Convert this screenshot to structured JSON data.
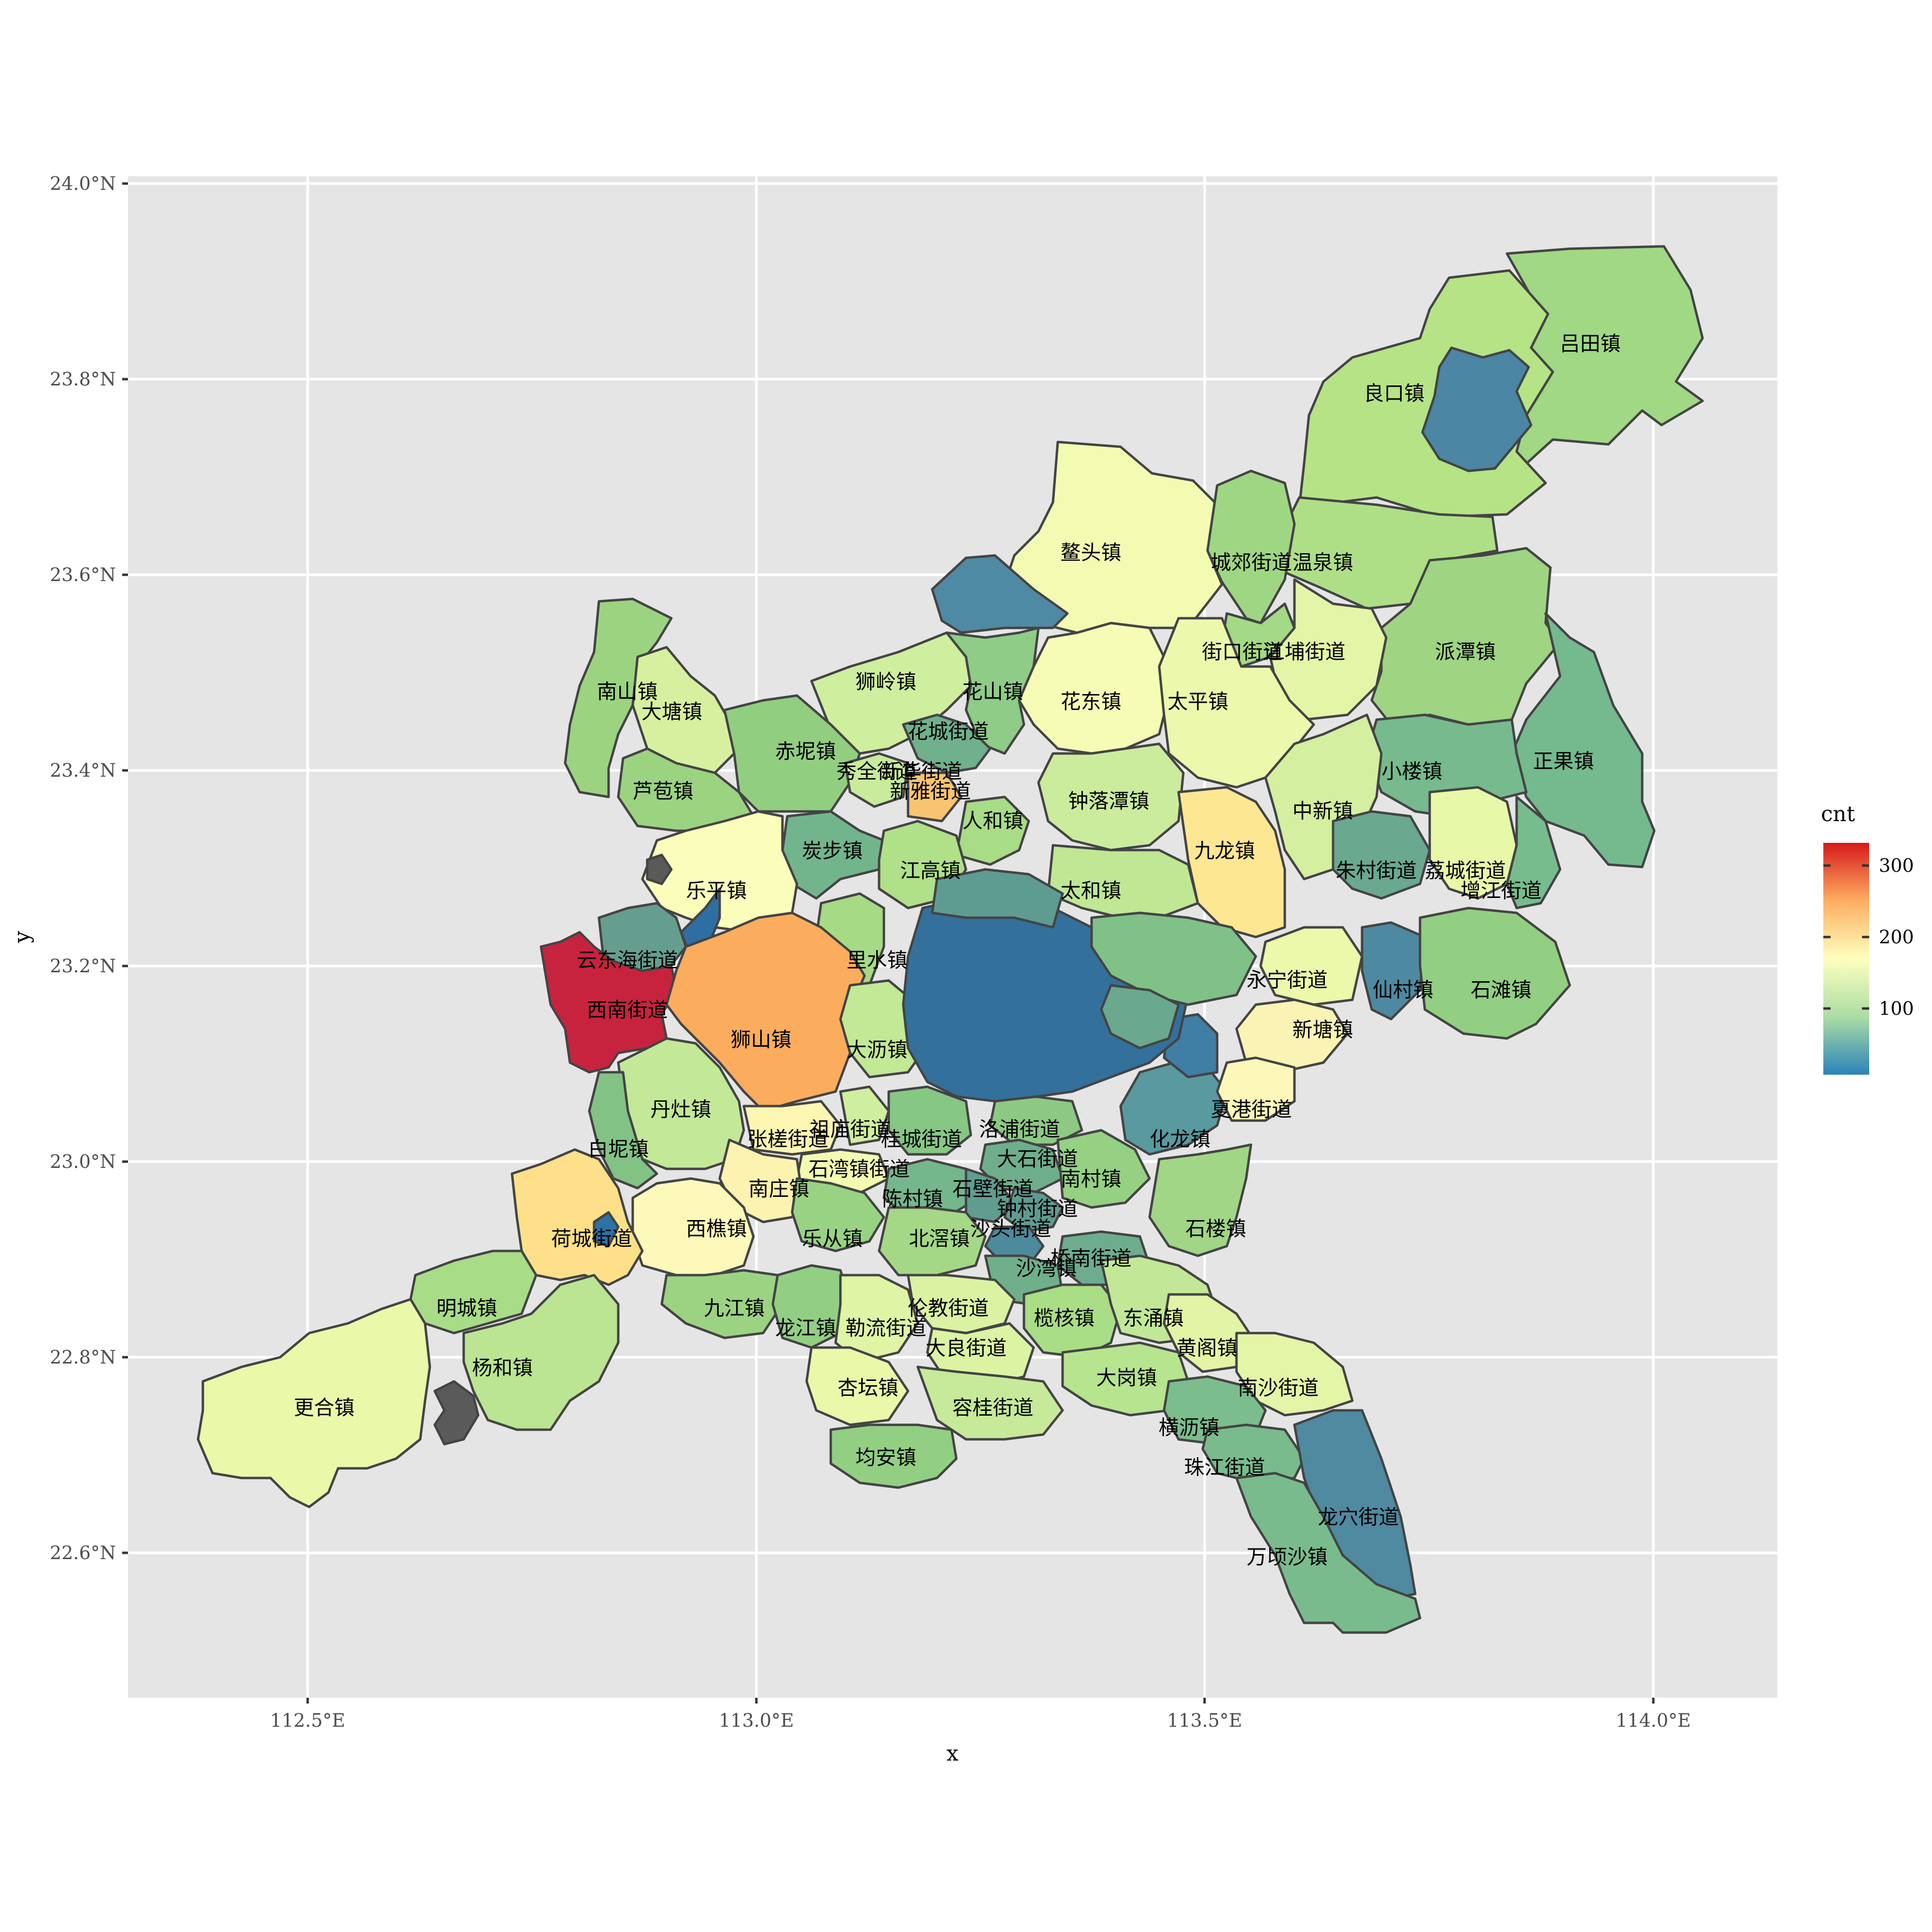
{
  "map": {
    "x_axis_title": "x",
    "y_axis_title": "y",
    "x_ticks": [
      "112.5°E",
      "113.0°E",
      "113.5°E",
      "114.0°E"
    ],
    "y_ticks": [
      "24.0°N",
      "23.8°N",
      "23.6°N",
      "23.4°N",
      "23.2°N",
      "23.0°N",
      "22.8°N",
      "22.6°N"
    ],
    "legend": {
      "title": "cnt",
      "ticks": [
        "300",
        "200",
        "100"
      ],
      "colors": [
        "#2b83ba",
        "#abdda4",
        "#ffffbf",
        "#fdae61",
        "#d7191c"
      ]
    },
    "missing_color": "#5a5a5a"
  },
  "chart_data": {
    "type": "choropleth",
    "xlim": [
      112.3,
      114.15
    ],
    "ylim": [
      22.47,
      24.0
    ],
    "value_scale": [
      3,
      335
    ],
    "regions": [
      {
        "name": "吕田镇",
        "lon": 113.94,
        "lat": 23.83,
        "cnt": 90
      },
      {
        "name": "良口镇",
        "lon": 113.72,
        "lat": 23.78,
        "cnt": 95
      },
      {
        "name": "",
        "lon": 113.79,
        "lat": 23.76,
        "cnt": 5
      },
      {
        "name": "温泉镇",
        "lon": 113.64,
        "lat": 23.61,
        "cnt": 100
      },
      {
        "name": "鳌头镇",
        "lon": 113.38,
        "lat": 23.62,
        "cnt": 130
      },
      {
        "name": "城郊街道",
        "lon": 113.56,
        "lat": 23.61,
        "cnt": 95
      },
      {
        "name": "",
        "lon": 113.28,
        "lat": 23.57,
        "cnt": 5
      },
      {
        "name": "派潭镇",
        "lon": 113.8,
        "lat": 23.52,
        "cnt": 90
      },
      {
        "name": "街口街道",
        "lon": 113.55,
        "lat": 23.52,
        "cnt": 80
      },
      {
        "name": "江埔街道",
        "lon": 113.62,
        "lat": 23.52,
        "cnt": 110
      },
      {
        "name": "正果镇",
        "lon": 113.91,
        "lat": 23.41,
        "cnt": 60
      },
      {
        "name": "南山镇",
        "lon": 112.86,
        "lat": 23.48,
        "cnt": 90
      },
      {
        "name": "大塘镇",
        "lon": 112.91,
        "lat": 23.46,
        "cnt": 120
      },
      {
        "name": "狮岭镇",
        "lon": 113.15,
        "lat": 23.49,
        "cnt": 110
      },
      {
        "name": "花山镇",
        "lon": 113.27,
        "lat": 23.48,
        "cnt": 80
      },
      {
        "name": "花东镇",
        "lon": 113.38,
        "lat": 23.47,
        "cnt": 140
      },
      {
        "name": "太平镇",
        "lon": 113.5,
        "lat": 23.47,
        "cnt": 130
      },
      {
        "name": "赤坭镇",
        "lon": 113.06,
        "lat": 23.42,
        "cnt": 90
      },
      {
        "name": "花城街道",
        "lon": 113.22,
        "lat": 23.44,
        "cnt": 70
      },
      {
        "name": "小楼镇",
        "lon": 113.74,
        "lat": 23.4,
        "cnt": 70
      },
      {
        "name": "芦苞镇",
        "lon": 112.9,
        "lat": 23.38,
        "cnt": 90
      },
      {
        "name": "秀全街道",
        "lon": 113.14,
        "lat": 23.4,
        "cnt": 100
      },
      {
        "name": "新华街道",
        "lon": 113.19,
        "lat": 23.4,
        "cnt": 120
      },
      {
        "name": "新雅街道",
        "lon": 113.2,
        "lat": 23.38,
        "cnt": 180
      },
      {
        "name": "钟落潭镇",
        "lon": 113.4,
        "lat": 23.37,
        "cnt": 110
      },
      {
        "name": "中新镇",
        "lon": 113.64,
        "lat": 23.36,
        "cnt": 110
      },
      {
        "name": "人和镇",
        "lon": 113.27,
        "lat": 23.35,
        "cnt": 90
      },
      {
        "name": "九龙镇",
        "lon": 113.53,
        "lat": 23.32,
        "cnt": 170
      },
      {
        "name": "炭步镇",
        "lon": 113.09,
        "lat": 23.32,
        "cnt": 70
      },
      {
        "name": "朱村街道",
        "lon": 113.7,
        "lat": 23.3,
        "cnt": 60
      },
      {
        "name": "荔城街道",
        "lon": 113.8,
        "lat": 23.3,
        "cnt": 130
      },
      {
        "name": "增江街道",
        "lon": 113.84,
        "lat": 23.28,
        "cnt": 70
      },
      {
        "name": "江高镇",
        "lon": 113.2,
        "lat": 23.3,
        "cnt": 100
      },
      {
        "name": "乐平镇",
        "lon": 112.96,
        "lat": 23.28,
        "cnt": 150
      },
      {
        "name": "太和镇",
        "lon": 113.38,
        "lat": 23.28,
        "cnt": 100
      },
      {
        "name": "",
        "lon": 112.92,
        "lat": 23.24,
        "cnt": 8
      },
      {
        "name": "云东海街道",
        "lon": 112.86,
        "lat": 23.21,
        "cnt": 70
      },
      {
        "name": "里水镇",
        "lon": 113.14,
        "lat": 23.21,
        "cnt": 100
      },
      {
        "name": "仙村镇",
        "lon": 113.73,
        "lat": 23.18,
        "cnt": 50
      },
      {
        "name": "石滩镇",
        "lon": 113.84,
        "lat": 23.18,
        "cnt": 90
      },
      {
        "name": "永宁街道",
        "lon": 113.6,
        "lat": 23.19,
        "cnt": 130
      },
      {
        "name": "新塘镇",
        "lon": 113.64,
        "lat": 23.14,
        "cnt": 140
      },
      {
        "name": "西南街道",
        "lon": 112.86,
        "lat": 23.16,
        "cnt": 330
      },
      {
        "name": "狮山镇",
        "lon": 113.01,
        "lat": 23.13,
        "cnt": 230
      },
      {
        "name": "大沥镇",
        "lon": 113.14,
        "lat": 23.12,
        "cnt": 100
      },
      {
        "name": "丹灶镇",
        "lon": 112.92,
        "lat": 23.06,
        "cnt": 110
      },
      {
        "name": "白坭镇",
        "lon": 112.85,
        "lat": 23.02,
        "cnt": 80
      },
      {
        "name": "张槎街道",
        "lon": 113.04,
        "lat": 23.03,
        "cnt": 150
      },
      {
        "name": "祖庙街道",
        "lon": 113.11,
        "lat": 23.04,
        "cnt": 110
      },
      {
        "name": "桂城街道",
        "lon": 113.19,
        "lat": 23.03,
        "cnt": 80
      },
      {
        "name": "石湾镇街道",
        "lon": 113.12,
        "lat": 23.0,
        "cnt": 130
      },
      {
        "name": "南庄镇",
        "lon": 113.03,
        "lat": 22.98,
        "cnt": 150
      },
      {
        "name": "化龙镇",
        "lon": 113.48,
        "lat": 23.03,
        "cnt": 45
      },
      {
        "name": "夏港街道",
        "lon": 113.56,
        "lat": 23.06,
        "cnt": 80
      },
      {
        "name": "洛浦街道",
        "lon": 113.3,
        "lat": 23.04,
        "cnt": 70
      },
      {
        "name": "大石街道",
        "lon": 113.32,
        "lat": 23.01,
        "cnt": 70
      },
      {
        "name": "南村镇",
        "lon": 113.38,
        "lat": 22.99,
        "cnt": 80
      },
      {
        "name": "陈村镇",
        "lon": 113.18,
        "lat": 22.97,
        "cnt": 70
      },
      {
        "name": "石壁街道",
        "lon": 113.27,
        "lat": 22.98,
        "cnt": 60
      },
      {
        "name": "钟村街道",
        "lon": 113.32,
        "lat": 22.96,
        "cnt": 60
      },
      {
        "name": "沙头街道",
        "lon": 113.29,
        "lat": 22.94,
        "cnt": 50
      },
      {
        "name": "石楼镇",
        "lon": 113.52,
        "lat": 22.94,
        "cnt": 90
      },
      {
        "name": "西樵镇",
        "lon": 112.96,
        "lat": 22.94,
        "cnt": 140
      },
      {
        "name": "荷城街道",
        "lon": 112.82,
        "lat": 22.93,
        "cnt": 170
      },
      {
        "name": "",
        "lon": 112.84,
        "lat": 22.93,
        "cnt": 5
      },
      {
        "name": "乐从镇",
        "lon": 113.09,
        "lat": 22.93,
        "cnt": 80
      },
      {
        "name": "北滘镇",
        "lon": 113.21,
        "lat": 22.93,
        "cnt": 90
      },
      {
        "name": "沙湾镇",
        "lon": 113.33,
        "lat": 22.9,
        "cnt": 60
      },
      {
        "name": "桥南街道",
        "lon": 113.38,
        "lat": 22.91,
        "cnt": 60
      },
      {
        "name": "明城镇",
        "lon": 112.68,
        "lat": 22.86,
        "cnt": 100
      },
      {
        "name": "九江镇",
        "lon": 112.98,
        "lat": 22.86,
        "cnt": 90
      },
      {
        "name": "龙江镇",
        "lon": 113.06,
        "lat": 22.84,
        "cnt": 90
      },
      {
        "name": "勒流街道",
        "lon": 113.15,
        "lat": 22.84,
        "cnt": 110
      },
      {
        "name": "伦教街道",
        "lon": 113.22,
        "lat": 22.86,
        "cnt": 110
      },
      {
        "name": "榄核镇",
        "lon": 113.35,
        "lat": 22.85,
        "cnt": 90
      },
      {
        "name": "东涌镇",
        "lon": 113.45,
        "lat": 22.85,
        "cnt": 100
      },
      {
        "name": "黄阁镇",
        "lon": 113.51,
        "lat": 22.82,
        "cnt": 120
      },
      {
        "name": "大良街道",
        "lon": 113.24,
        "lat": 22.82,
        "cnt": 110
      },
      {
        "name": "杨和镇",
        "lon": 112.72,
        "lat": 22.8,
        "cnt": 100
      },
      {
        "name": "南沙街道",
        "lon": 113.59,
        "lat": 22.78,
        "cnt": 130
      },
      {
        "name": "大岗镇",
        "lon": 113.42,
        "lat": 22.79,
        "cnt": 100
      },
      {
        "name": "杏坛镇",
        "lon": 113.13,
        "lat": 22.78,
        "cnt": 120
      },
      {
        "name": "容桂街道",
        "lon": 113.27,
        "lat": 22.76,
        "cnt": 100
      },
      {
        "name": "更合镇",
        "lon": 112.52,
        "lat": 22.76,
        "cnt": 130
      },
      {
        "name": "",
        "lon": 112.68,
        "lat": 22.74,
        "cnt": 8
      },
      {
        "name": "横沥镇",
        "lon": 113.49,
        "lat": 22.74,
        "cnt": 70
      },
      {
        "name": "均安镇",
        "lon": 113.15,
        "lat": 22.71,
        "cnt": 90
      },
      {
        "name": "珠江街道",
        "lon": 113.53,
        "lat": 22.7,
        "cnt": 70
      },
      {
        "name": "龙穴街道",
        "lon": 113.68,
        "lat": 22.65,
        "cnt": 50
      },
      {
        "name": "万顷沙镇",
        "lon": 113.6,
        "lat": 22.61,
        "cnt": 70
      }
    ]
  }
}
